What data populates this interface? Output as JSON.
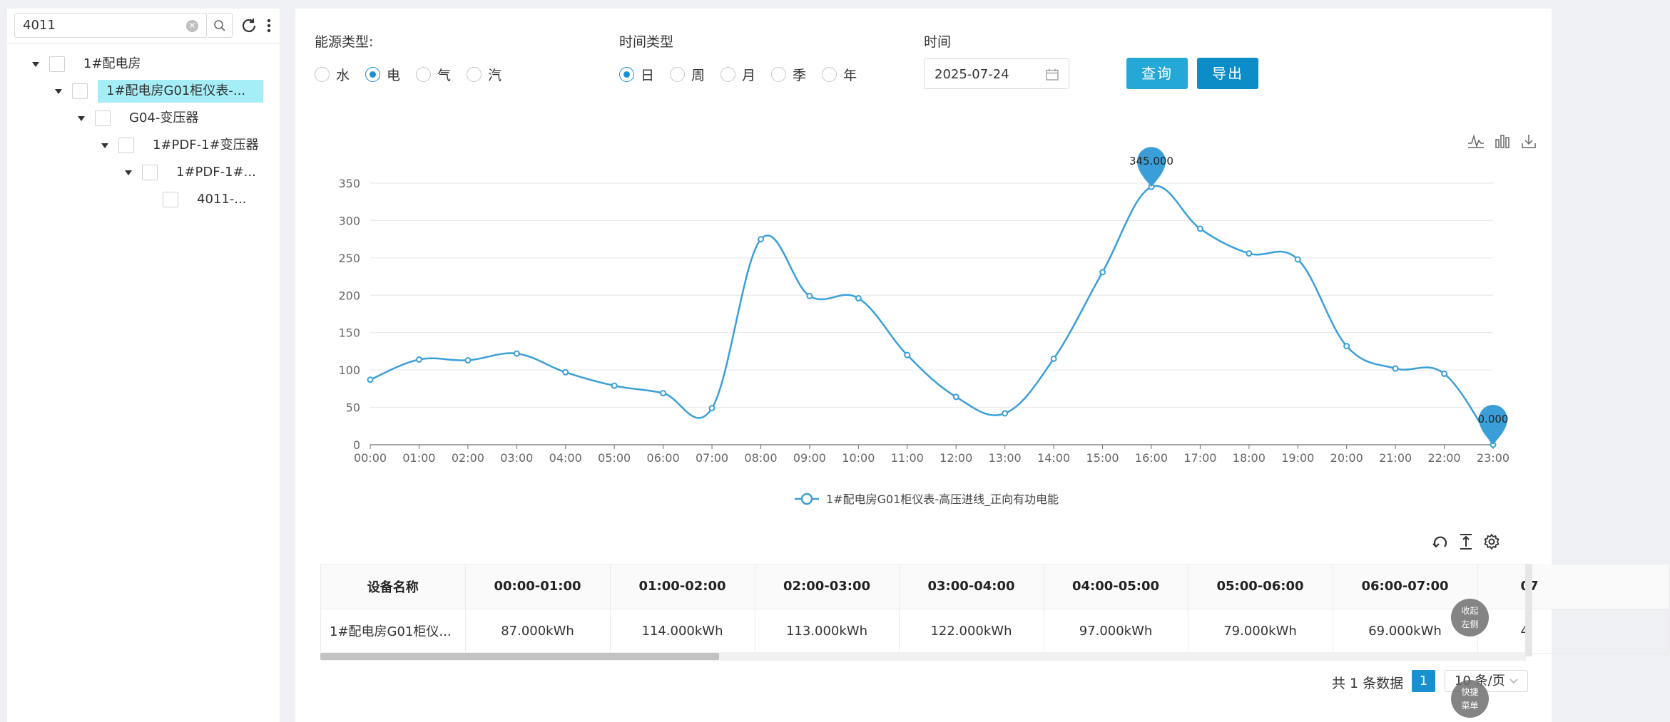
{
  "tree": {
    "search_value": "4011",
    "nodes": [
      {
        "label": "1#配电房"
      },
      {
        "label": "1#配电房G01柜仪表-..."
      },
      {
        "label": "G04-变压器"
      },
      {
        "label": "1#PDF-1#变压器"
      },
      {
        "label": "1#PDF-1#..."
      },
      {
        "label": "4011-..."
      }
    ]
  },
  "filters": {
    "energy_label": "能源类型:",
    "energy_options": [
      "水",
      "电",
      "气",
      "汽"
    ],
    "energy_selected": "电",
    "time_type_label": "时间类型",
    "time_type_options": [
      "日",
      "周",
      "月",
      "季",
      "年"
    ],
    "time_type_selected": "日",
    "date_label": "时间",
    "date_value": "2025-07-24",
    "query_button": "查询",
    "export_button": "导出"
  },
  "chart_data": {
    "type": "line",
    "title": "",
    "xlabel": "",
    "ylabel": "",
    "x": [
      "00:00",
      "01:00",
      "02:00",
      "03:00",
      "04:00",
      "05:00",
      "06:00",
      "07:00",
      "08:00",
      "09:00",
      "10:00",
      "11:00",
      "12:00",
      "13:00",
      "14:00",
      "15:00",
      "16:00",
      "17:00",
      "18:00",
      "19:00",
      "20:00",
      "21:00",
      "22:00",
      "23:00"
    ],
    "series": [
      {
        "name": "1#配电房G01柜仪表-高压进线_正向有功电能",
        "values": [
          87,
          114,
          113,
          122,
          97,
          79,
          69,
          49,
          275,
          199,
          196,
          120,
          64,
          42,
          115,
          231,
          345,
          289,
          256,
          248,
          132,
          102,
          95,
          0
        ]
      }
    ],
    "ylim": [
      0,
      350
    ],
    "yticks": [
      0,
      50,
      100,
      150,
      200,
      250,
      300,
      350
    ],
    "markers": [
      {
        "label": "345.000",
        "type": "max"
      },
      {
        "label": "0.000",
        "type": "min"
      }
    ],
    "grid": true,
    "legend_position": "bottom-center",
    "color": "#3a9fd8"
  },
  "table": {
    "columns": [
      "设备名称",
      "00:00-01:00",
      "01:00-02:00",
      "02:00-03:00",
      "03:00-04:00",
      "04:00-05:00",
      "05:00-06:00",
      "06:00-07:00",
      "07"
    ],
    "rows": [
      [
        "1#配电房G01柜仪...",
        "87.000kWh",
        "114.000kWh",
        "113.000kWh",
        "122.000kWh",
        "97.000kWh",
        "79.000kWh",
        "69.000kWh",
        "4"
      ]
    ]
  },
  "pagination": {
    "total_text": "共 1 条数据",
    "current_page": "1",
    "page_size": "10 条/页"
  },
  "float_buttons": {
    "collapse_line1": "收起",
    "collapse_line2": "左侧",
    "quick_line1": "快捷",
    "quick_line2": "菜单"
  },
  "colors": {
    "accent": "#1890d0",
    "query_button": "#24a8d8",
    "export_button": "#0d8dc8",
    "tree_selected": "#a6eef7",
    "line": "#3a9fd8"
  }
}
